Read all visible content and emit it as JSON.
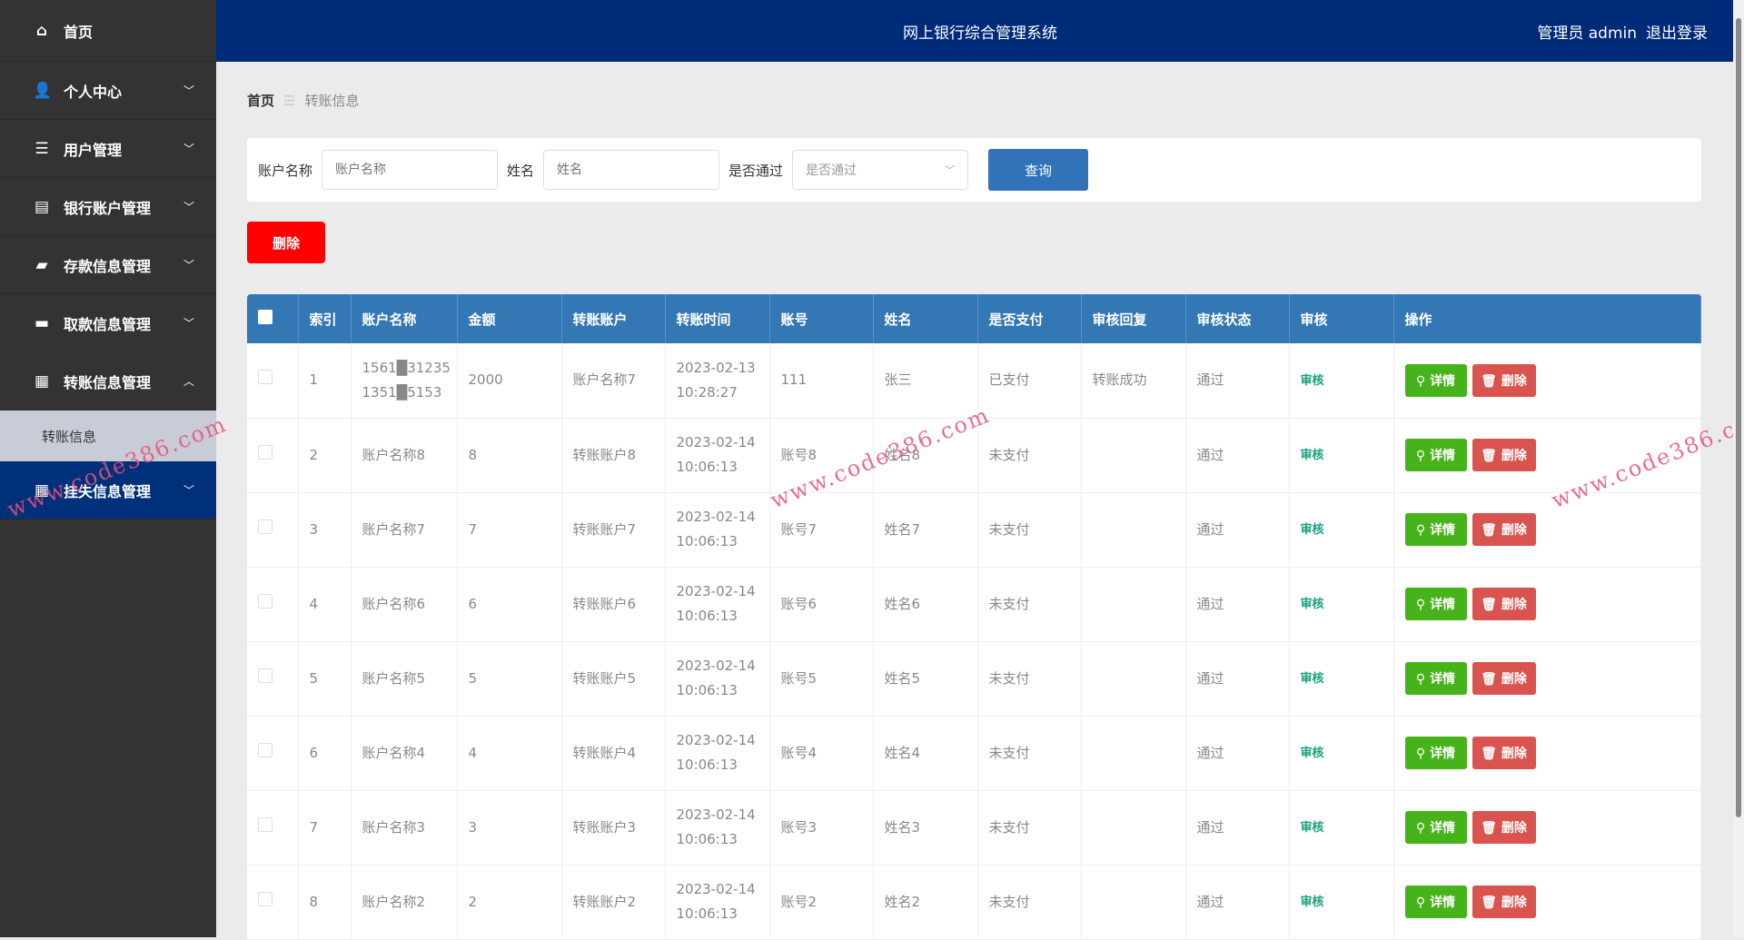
{
  "header": {
    "title": "网上银行综合管理系统",
    "user": "管理员 admin",
    "logout": "退出登录"
  },
  "sidebar": {
    "items": [
      {
        "label": "首页",
        "icon": "home-icon"
      },
      {
        "label": "个人中心",
        "icon": "user-icon",
        "chevron": "﹀"
      },
      {
        "label": "用户管理",
        "icon": "list-icon",
        "chevron": "﹀"
      },
      {
        "label": "银行账户管理",
        "icon": "card-icon",
        "chevron": "﹀"
      },
      {
        "label": "存款信息管理",
        "icon": "wallet-icon",
        "chevron": "﹀"
      },
      {
        "label": "取款信息管理",
        "icon": "cash-icon",
        "chevron": "﹀"
      },
      {
        "label": "转账信息管理",
        "icon": "grid-icon",
        "chevron": "︿"
      },
      {
        "label": "转账信息"
      },
      {
        "label": "挂失信息管理",
        "icon": "grid-icon",
        "chevron": "﹀"
      }
    ]
  },
  "breadcrumb": {
    "home": "首页",
    "sep": "☰",
    "current": "转账信息"
  },
  "search": {
    "account_label": "账户名称",
    "account_placeholder": "账户名称",
    "name_label": "姓名",
    "name_placeholder": "姓名",
    "passed_label": "是否通过",
    "passed_placeholder": "是否通过",
    "query": "查询"
  },
  "delete_button": "删除",
  "table": {
    "headers": [
      "索引",
      "账户名称",
      "金额",
      "转账账户",
      "转账时间",
      "账号",
      "姓名",
      "是否支付",
      "审核回复",
      "审核状态",
      "审核",
      "操作"
    ],
    "rows": [
      {
        "idx": "1",
        "account": "1561█31235\n1351█5153",
        "amount": "2000",
        "to": "账户名称7",
        "time": "2023-02-13\n10:28:27",
        "no": "111",
        "name": "张三",
        "paid": "已支付",
        "reply": "转账成功",
        "status": "通过"
      },
      {
        "idx": "2",
        "account": "账户名称8",
        "amount": "8",
        "to": "转账账户8",
        "time": "2023-02-14\n10:06:13",
        "no": "账号8",
        "name": "姓名8",
        "paid": "未支付",
        "reply": "",
        "status": "通过"
      },
      {
        "idx": "3",
        "account": "账户名称7",
        "amount": "7",
        "to": "转账账户7",
        "time": "2023-02-14\n10:06:13",
        "no": "账号7",
        "name": "姓名7",
        "paid": "未支付",
        "reply": "",
        "status": "通过"
      },
      {
        "idx": "4",
        "account": "账户名称6",
        "amount": "6",
        "to": "转账账户6",
        "time": "2023-02-14\n10:06:13",
        "no": "账号6",
        "name": "姓名6",
        "paid": "未支付",
        "reply": "",
        "status": "通过"
      },
      {
        "idx": "5",
        "account": "账户名称5",
        "amount": "5",
        "to": "转账账户5",
        "time": "2023-02-14\n10:06:13",
        "no": "账号5",
        "name": "姓名5",
        "paid": "未支付",
        "reply": "",
        "status": "通过"
      },
      {
        "idx": "6",
        "account": "账户名称4",
        "amount": "4",
        "to": "转账账户4",
        "time": "2023-02-14\n10:06:13",
        "no": "账号4",
        "name": "姓名4",
        "paid": "未支付",
        "reply": "",
        "status": "通过"
      },
      {
        "idx": "7",
        "account": "账户名称3",
        "amount": "3",
        "to": "转账账户3",
        "time": "2023-02-14\n10:06:13",
        "no": "账号3",
        "name": "姓名3",
        "paid": "未支付",
        "reply": "",
        "status": "通过"
      },
      {
        "idx": "8",
        "account": "账户名称2",
        "amount": "2",
        "to": "转账账户2",
        "time": "2023-02-14\n10:06:13",
        "no": "账号2",
        "name": "姓名2",
        "paid": "未支付",
        "reply": "",
        "status": "通过"
      }
    ],
    "audit_label": "审核",
    "detail_label": "详情",
    "remove_label": "删除"
  },
  "watermark": "www.code386.com",
  "colors": {
    "header": "#002b78",
    "sidebar": "#333333",
    "table_header": "#3477b5",
    "detail": "#47b31a",
    "remove": "#d9534f",
    "delete": "#ff0000"
  }
}
